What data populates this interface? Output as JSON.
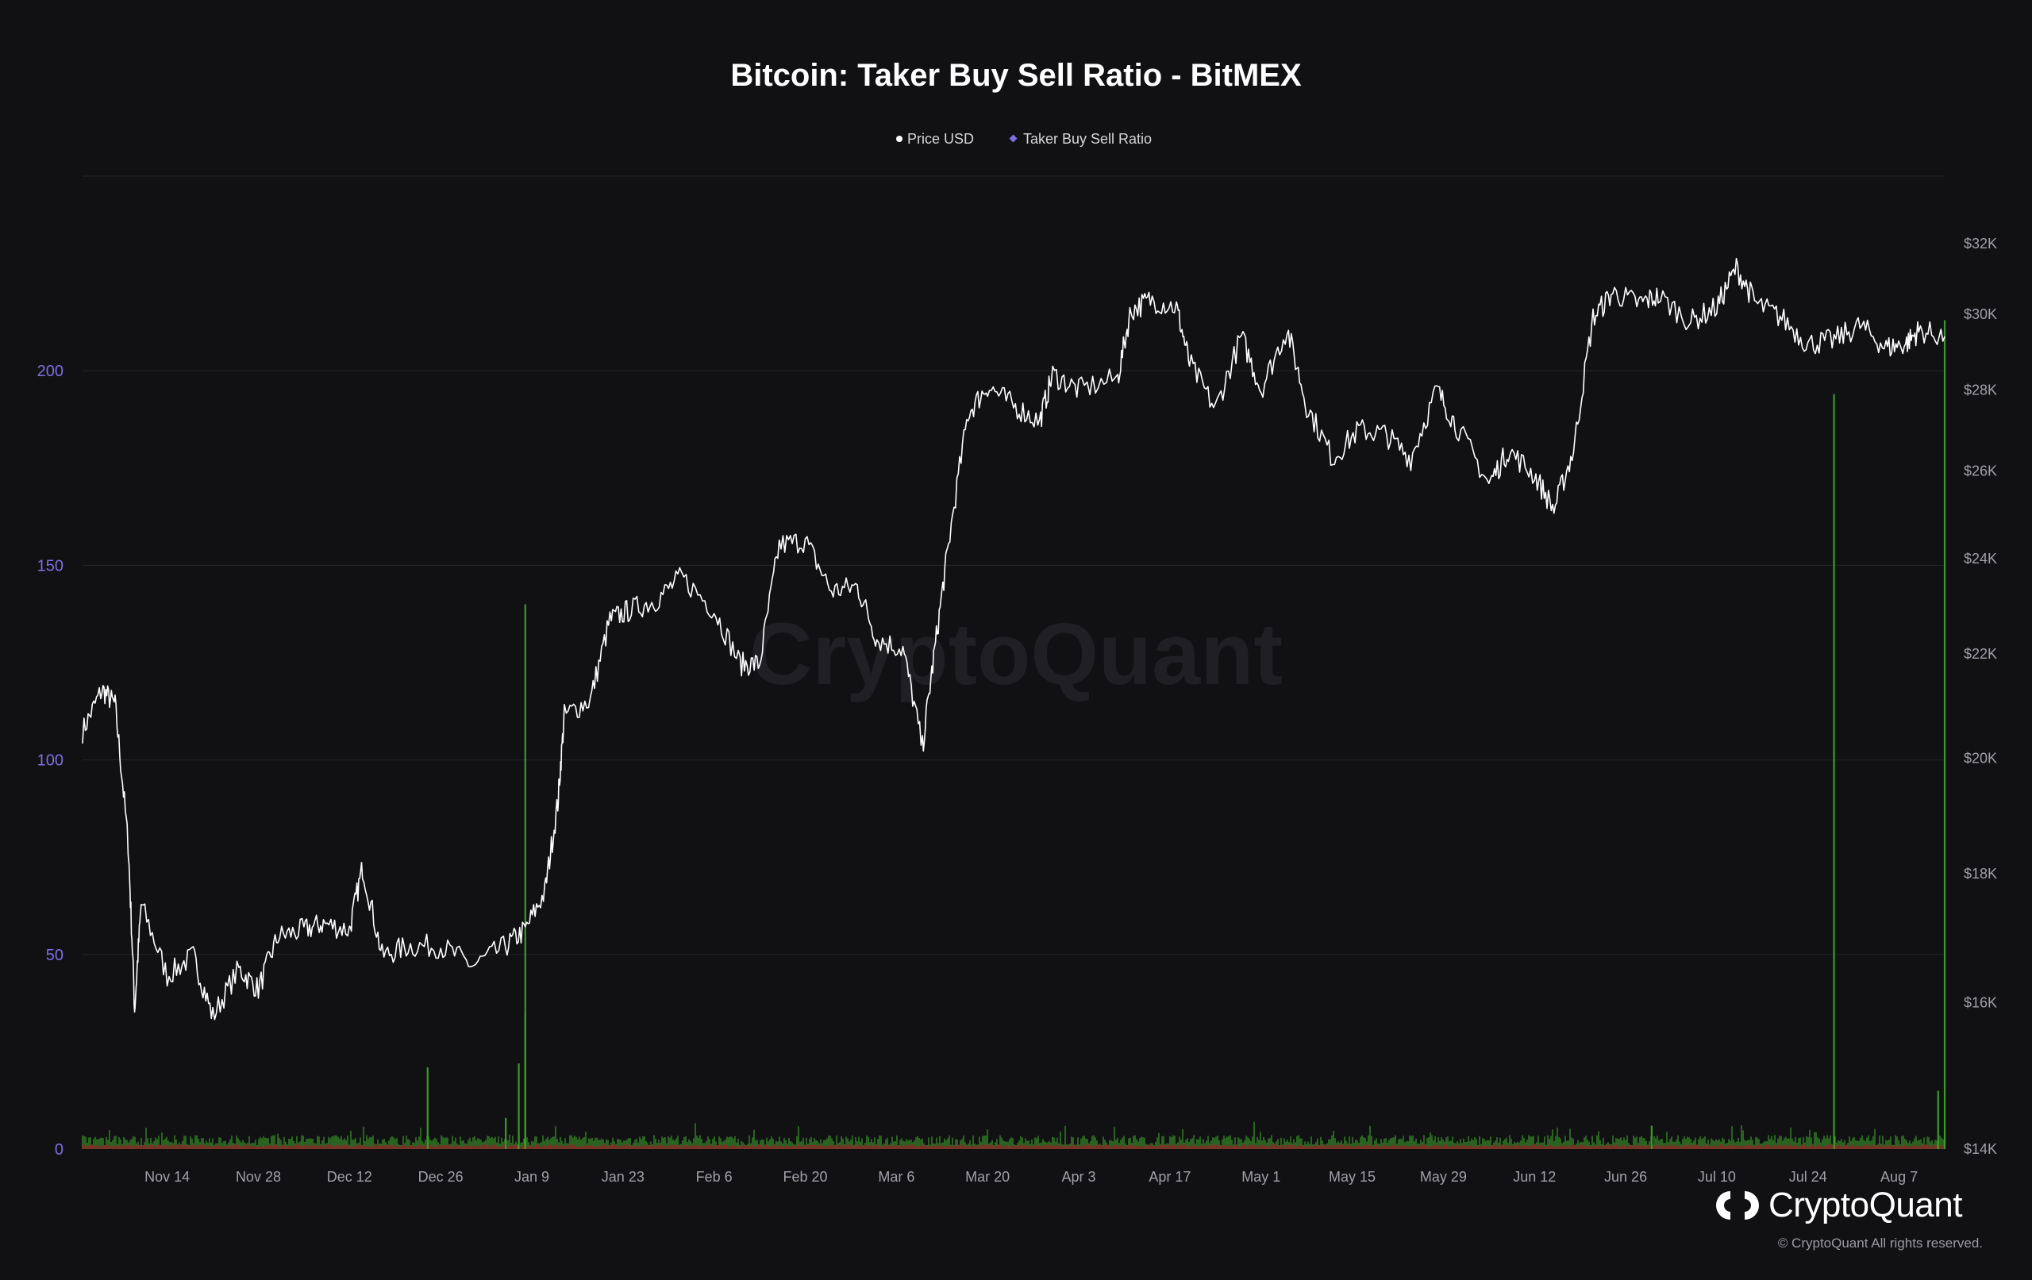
{
  "colors": {
    "background": "#111114",
    "price_line": "#ffffff",
    "ratio_above": "#3a9a2a",
    "ratio_below": "#b43a30",
    "left_axis": "#7d6fe0",
    "grid": "#26262b"
  },
  "brand": {
    "name": "CryptoQuant",
    "copyright": "© CryptoQuant All rights reserved.",
    "logo_icon": "cryptoquant-logo-icon"
  },
  "watermark": "CryptoQuant",
  "chart_data": {
    "type": "line",
    "title": "Bitcoin: Taker Buy Sell Ratio - BitMEX",
    "legend": {
      "placement": "top-center",
      "entries": [
        "Price USD",
        "Taker Buy Sell Ratio"
      ]
    },
    "grid": true,
    "x_range": [
      "2022-11-01",
      "2023-08-14"
    ],
    "x_ticks": [
      "Nov 14",
      "Nov 28",
      "Dec 12",
      "Dec 26",
      "Jan 9",
      "Jan 23",
      "Feb 6",
      "Feb 20",
      "Mar 6",
      "Mar 20",
      "Apr 3",
      "Apr 17",
      "May 1",
      "May 15",
      "May 29",
      "Jun 12",
      "Jun 26",
      "Jul 10",
      "Jul 24",
      "Aug 7"
    ],
    "y_left": {
      "ticks": [
        "0",
        "50",
        "100",
        "150",
        "200"
      ],
      "range": [
        0,
        250
      ]
    },
    "y_right": {
      "ticks": [
        "$14K",
        "$16K",
        "$18K",
        "$20K",
        "$22K",
        "$24K",
        "$26K",
        "$28K",
        "$30K",
        "$32K"
      ],
      "values": [
        14000,
        16000,
        18000,
        20000,
        22000,
        24000,
        26000,
        28000,
        30000,
        32000
      ],
      "scale": "log"
    },
    "series": [
      {
        "name": "Price USD",
        "axis": "right",
        "points": [
          [
            "2022-11-01",
            20500
          ],
          [
            "2022-11-04",
            21300
          ],
          [
            "2022-11-06",
            21000
          ],
          [
            "2022-11-08",
            18500
          ],
          [
            "2022-11-09",
            15900
          ],
          [
            "2022-11-10",
            17500
          ],
          [
            "2022-11-14",
            16400
          ],
          [
            "2022-11-18",
            16700
          ],
          [
            "2022-11-21",
            15800
          ],
          [
            "2022-11-25",
            16500
          ],
          [
            "2022-11-28",
            16200
          ],
          [
            "2022-12-01",
            17000
          ],
          [
            "2022-12-05",
            17100
          ],
          [
            "2022-12-08",
            17200
          ],
          [
            "2022-12-12",
            17100
          ],
          [
            "2022-12-14",
            18100
          ],
          [
            "2022-12-17",
            16700
          ],
          [
            "2022-12-21",
            16850
          ],
          [
            "2022-12-26",
            16850
          ],
          [
            "2022-12-31",
            16550
          ],
          [
            "2023-01-05",
            16850
          ],
          [
            "2023-01-08",
            17100
          ],
          [
            "2023-01-11",
            17700
          ],
          [
            "2023-01-13",
            19200
          ],
          [
            "2023-01-14",
            20800
          ],
          [
            "2023-01-18",
            21100
          ],
          [
            "2023-01-21",
            22700
          ],
          [
            "2023-01-24",
            22900
          ],
          [
            "2023-01-28",
            23100
          ],
          [
            "2023-02-01",
            23600
          ],
          [
            "2023-02-06",
            22900
          ],
          [
            "2023-02-10",
            21800
          ],
          [
            "2023-02-13",
            21800
          ],
          [
            "2023-02-16",
            24300
          ],
          [
            "2023-02-20",
            24400
          ],
          [
            "2023-02-24",
            23300
          ],
          [
            "2023-02-28",
            23400
          ],
          [
            "2023-03-03",
            22300
          ],
          [
            "2023-03-07",
            22100
          ],
          [
            "2023-03-10",
            20200
          ],
          [
            "2023-03-12",
            22200
          ],
          [
            "2023-03-14",
            24300
          ],
          [
            "2023-03-17",
            27400
          ],
          [
            "2023-03-20",
            28100
          ],
          [
            "2023-03-24",
            27600
          ],
          [
            "2023-03-28",
            27200
          ],
          [
            "2023-03-30",
            28400
          ],
          [
            "2023-04-03",
            28000
          ],
          [
            "2023-04-09",
            28300
          ],
          [
            "2023-04-11",
            30100
          ],
          [
            "2023-04-14",
            30400
          ],
          [
            "2023-04-18",
            30200
          ],
          [
            "2023-04-20",
            28700
          ],
          [
            "2023-04-24",
            27500
          ],
          [
            "2023-04-28",
            29400
          ],
          [
            "2023-05-01",
            28000
          ],
          [
            "2023-05-05",
            29600
          ],
          [
            "2023-05-08",
            27600
          ],
          [
            "2023-05-12",
            26300
          ],
          [
            "2023-05-16",
            27000
          ],
          [
            "2023-05-20",
            26900
          ],
          [
            "2023-05-24",
            26300
          ],
          [
            "2023-05-28",
            28000
          ],
          [
            "2023-05-31",
            27100
          ],
          [
            "2023-06-05",
            25700
          ],
          [
            "2023-06-08",
            26500
          ],
          [
            "2023-06-12",
            25900
          ],
          [
            "2023-06-15",
            25100
          ],
          [
            "2023-06-18",
            26500
          ],
          [
            "2023-06-21",
            29900
          ],
          [
            "2023-06-24",
            30600
          ],
          [
            "2023-06-28",
            30300
          ],
          [
            "2023-07-01",
            30500
          ],
          [
            "2023-07-06",
            29800
          ],
          [
            "2023-07-10",
            30200
          ],
          [
            "2023-07-13",
            31300
          ],
          [
            "2023-07-16",
            30300
          ],
          [
            "2023-07-20",
            29900
          ],
          [
            "2023-07-24",
            29200
          ],
          [
            "2023-07-28",
            29300
          ],
          [
            "2023-08-01",
            29700
          ],
          [
            "2023-08-05",
            29100
          ],
          [
            "2023-08-08",
            29200
          ],
          [
            "2023-08-10",
            29550
          ],
          [
            "2023-08-14",
            29400
          ]
        ]
      },
      {
        "name": "Taker Buy Sell Ratio",
        "axis": "left",
        "baseline": 1,
        "spikes": [
          [
            "2022-12-24",
            21
          ],
          [
            "2023-01-05",
            8
          ],
          [
            "2023-01-07",
            22
          ],
          [
            "2023-01-08",
            140
          ],
          [
            "2023-01-08",
            35
          ],
          [
            "2023-06-30",
            6
          ],
          [
            "2023-07-28",
            194
          ],
          [
            "2023-08-13",
            15
          ],
          [
            "2023-08-14",
            213
          ]
        ]
      }
    ]
  }
}
